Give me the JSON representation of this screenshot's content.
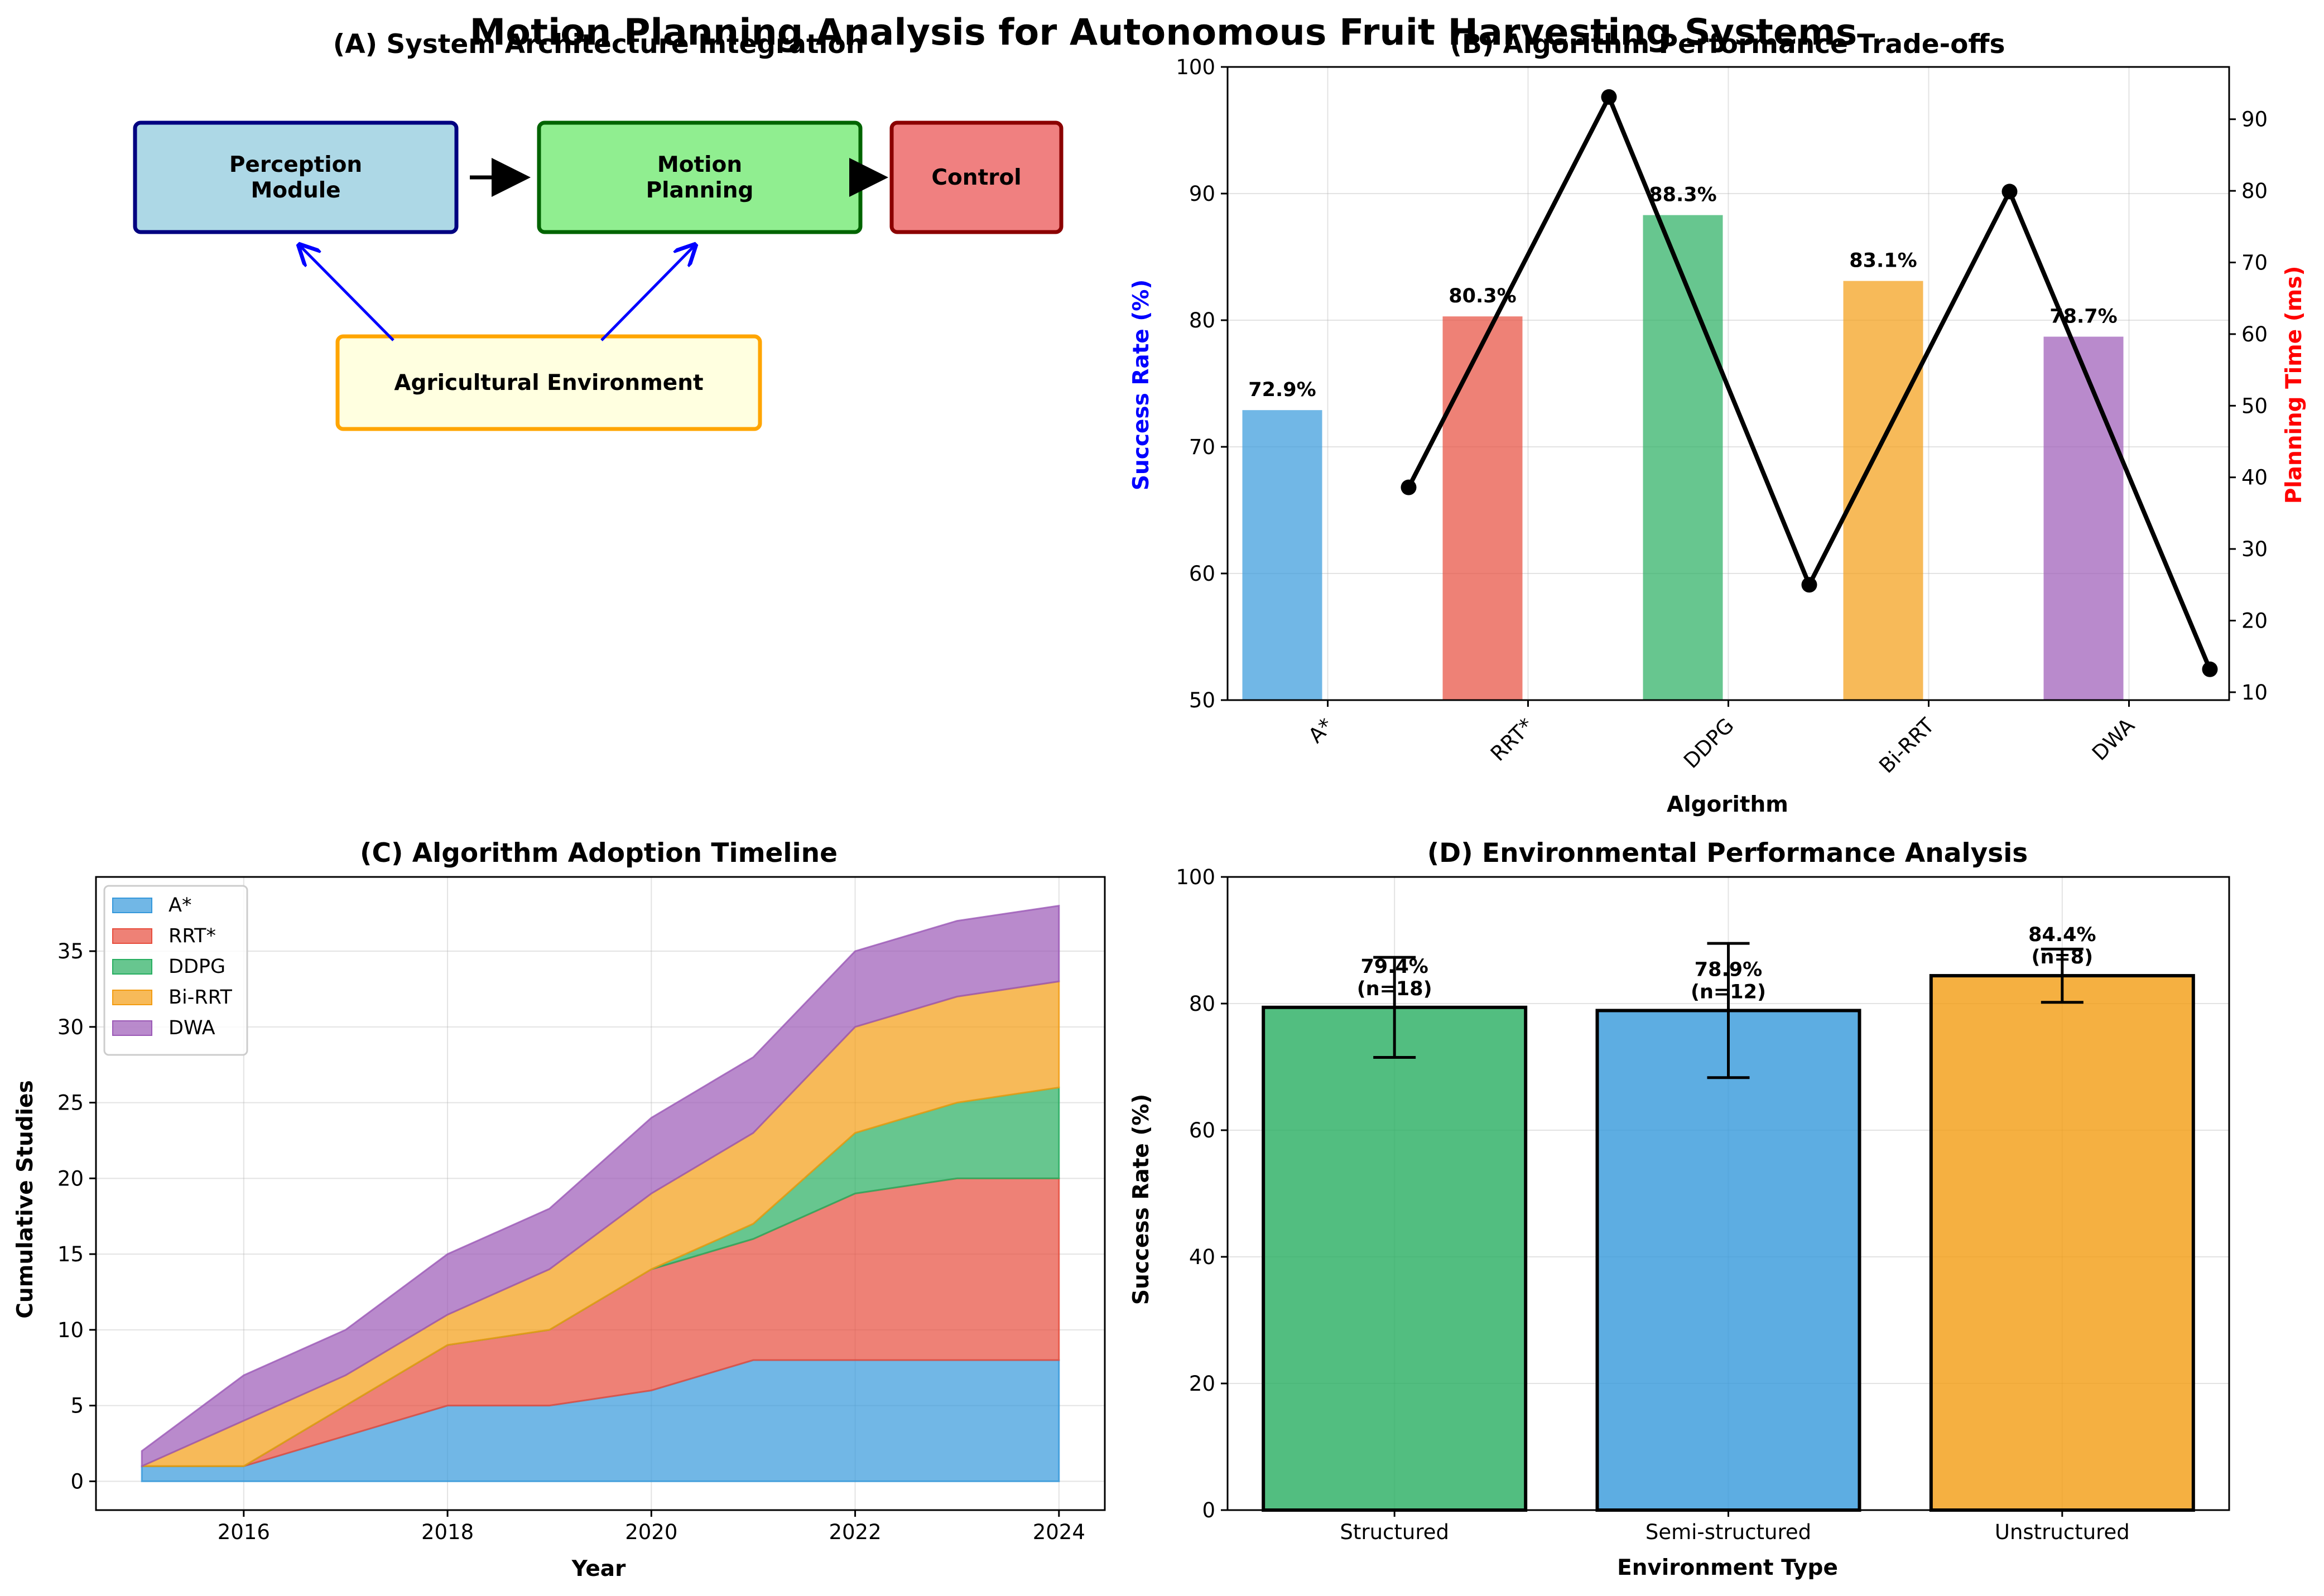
{
  "figure": {
    "suptitle": "Motion Planning Analysis for Autonomous Fruit Harvesting Systems"
  },
  "panel_a": {
    "title": "(A) System Architecture Integration",
    "boxes": [
      {
        "id": "perception",
        "lines": [
          "Perception",
          "Module"
        ],
        "fill": "#add8e6",
        "stroke": "#000080"
      },
      {
        "id": "motion",
        "lines": [
          "Motion",
          "Planning"
        ],
        "fill": "#90ee90",
        "stroke": "#006400"
      },
      {
        "id": "control",
        "lines": [
          "Control"
        ],
        "fill": "#f08080",
        "stroke": "#8b0000"
      },
      {
        "id": "environment",
        "lines": [
          "Agricultural Environment"
        ],
        "fill": "#ffffe0",
        "stroke": "#ffa500"
      }
    ]
  },
  "chart_data": [
    {
      "id": "B",
      "type": "bar",
      "title": "(B) Algorithm Performance Trade-offs",
      "xlabel": "Algorithm",
      "ylabel": "Success Rate (%)",
      "y2label": "Planning Time (ms)",
      "ylabel_color": "#0000ff",
      "y2label_color": "#ff0000",
      "categories": [
        "A*",
        "RRT*",
        "DDPG",
        "Bi-RRT",
        "DWA"
      ],
      "ylim": [
        50,
        100
      ],
      "y2lim": [
        8.9,
        97.3
      ],
      "yticks": [
        50,
        60,
        70,
        80,
        90,
        100
      ],
      "y2ticks": [
        10,
        20,
        30,
        40,
        50,
        60,
        70,
        80,
        90
      ],
      "series": [
        {
          "name": "Success Rate",
          "axis": "left",
          "kind": "bar",
          "values": [
            72.9,
            80.3,
            88.3,
            83.1,
            78.7
          ],
          "labels": [
            "72.9%",
            "80.3%",
            "88.3%",
            "83.1%",
            "78.7%"
          ],
          "colors": [
            "#3498db",
            "#e74c3c",
            "#27ae60",
            "#f39c12",
            "#9b59b6"
          ]
        },
        {
          "name": "Planning Time",
          "axis": "right",
          "kind": "line",
          "values": [
            38.6,
            93.1,
            25.0,
            79.9,
            13.2
          ],
          "color": "#000000"
        }
      ],
      "grid": true
    },
    {
      "id": "C",
      "type": "area",
      "title": "(C) Algorithm Adoption Timeline",
      "xlabel": "Year",
      "ylabel": "Cumulative Studies",
      "x": [
        2015,
        2016,
        2017,
        2018,
        2019,
        2020,
        2021,
        2022,
        2023,
        2024
      ],
      "xlim": [
        2014.55,
        2024.45
      ],
      "ylim": [
        -1.9,
        39.9
      ],
      "xticks": [
        2016,
        2018,
        2020,
        2022,
        2024
      ],
      "yticks": [
        0,
        5,
        10,
        15,
        20,
        25,
        30,
        35
      ],
      "stacked": true,
      "series": [
        {
          "name": "A*",
          "color": "#3498db",
          "values": [
            1,
            1,
            3,
            5,
            5,
            6,
            8,
            8,
            8,
            8
          ]
        },
        {
          "name": "RRT*",
          "color": "#e74c3c",
          "values": [
            0,
            0,
            2,
            4,
            5,
            8,
            8,
            11,
            12,
            12
          ]
        },
        {
          "name": "DDPG",
          "color": "#27ae60",
          "values": [
            0,
            0,
            0,
            0,
            0,
            0,
            1,
            4,
            5,
            6
          ]
        },
        {
          "name": "Bi-RRT",
          "color": "#f39c12",
          "values": [
            0,
            3,
            2,
            2,
            4,
            5,
            6,
            7,
            7,
            7
          ]
        },
        {
          "name": "DWA",
          "color": "#9b59b6",
          "values": [
            1,
            3,
            3,
            4,
            4,
            5,
            5,
            5,
            5,
            5
          ]
        }
      ],
      "legend": "upper-left",
      "grid": true
    },
    {
      "id": "D",
      "type": "bar",
      "title": "(D) Environmental Performance Analysis",
      "xlabel": "Environment Type",
      "ylabel": "Success Rate (%)",
      "categories": [
        "Structured",
        "Semi-structured",
        "Unstructured"
      ],
      "values": [
        79.4,
        78.9,
        84.4
      ],
      "errors": [
        7.9,
        10.6,
        4.2
      ],
      "labels": [
        "79.4%\n(n=18)",
        "78.9%\n(n=12)",
        "84.4%\n(n=8)"
      ],
      "colors": [
        "#27ae60",
        "#3498db",
        "#f39c12"
      ],
      "ylim": [
        0,
        100
      ],
      "yticks": [
        0,
        20,
        40,
        60,
        80,
        100
      ],
      "grid": true
    }
  ]
}
